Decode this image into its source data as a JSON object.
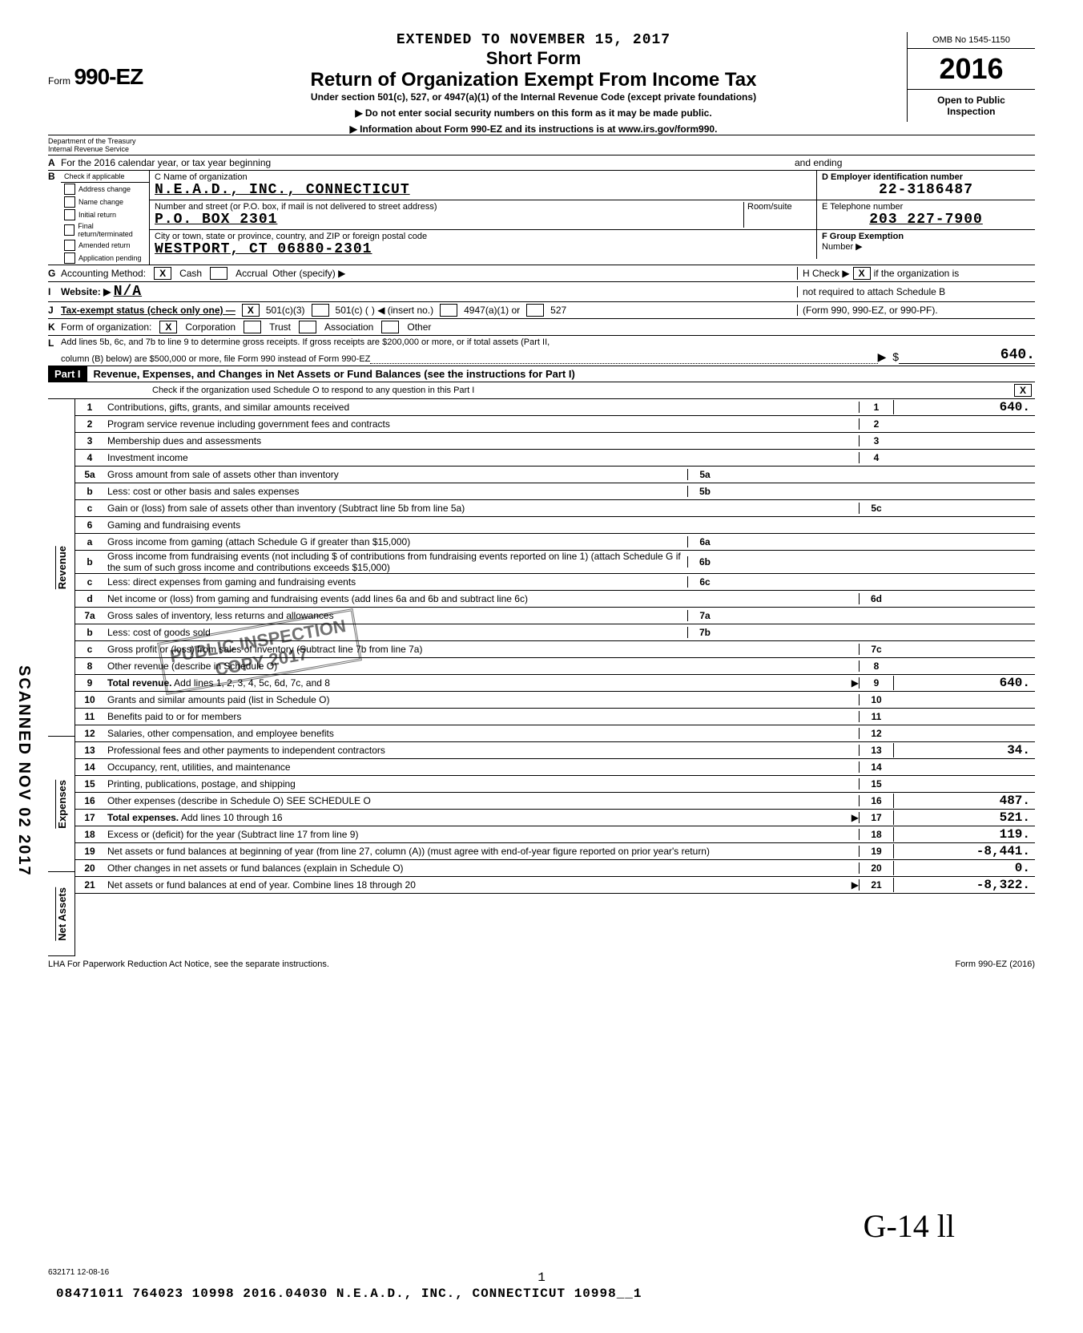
{
  "header": {
    "extended": "EXTENDED TO NOVEMBER 15, 2017",
    "short_form": "Short Form",
    "main_title": "Return of Organization Exempt From Income Tax",
    "subtitle": "Under section 501(c), 527, or 4947(a)(1) of the Internal Revenue Code (except private foundations)",
    "warn1": "▶ Do not enter social security numbers on this form as it may be made public.",
    "warn2": "▶ Information about Form 990-EZ and its instructions is at www.irs.gov/form990.",
    "form_small": "Form",
    "form_big": "990-EZ",
    "omb": "OMB No  1545-1150",
    "year": "2016",
    "open": "Open to Public",
    "insp": "Inspection",
    "dept1": "Department of the Treasury",
    "dept2": "Internal Revenue Service"
  },
  "rowA": {
    "label": "For the 2016 calendar year, or tax year beginning",
    "ending": "and ending"
  },
  "colB": {
    "header": "Check if applicable",
    "items": [
      "Address change",
      "Name change",
      "Initial return",
      "Final return/terminated",
      "Amended return",
      "Application pending"
    ]
  },
  "C": {
    "label": "C Name of organization",
    "value": "N.E.A.D., INC., CONNECTICUT",
    "addr_label": "Number and street (or P.O. box, if mail is not delivered to street address)",
    "room": "Room/suite",
    "addr_value": "P.O. BOX 2301",
    "city_label": "City or town, state or province, country, and ZIP or foreign postal code",
    "city_value": "WESTPORT, CT  06880-2301"
  },
  "D": {
    "label": "D Employer identification number",
    "value": "22-3186487"
  },
  "E": {
    "label": "E  Telephone number",
    "value": "203 227-7900"
  },
  "F": {
    "label": "F Group Exemption",
    "label2": "Number ▶"
  },
  "G": {
    "label": "Accounting Method:",
    "cash": "Cash",
    "accrual": "Accrual",
    "other": "Other (specify) ▶"
  },
  "H": {
    "label1": "H Check ▶",
    "label2": "if the organization is",
    "label3": "not required to attach Schedule B",
    "label4": "(Form 990, 990-EZ, or 990-PF)."
  },
  "I": {
    "label": "Website: ▶",
    "value": "N/A"
  },
  "J": {
    "label": "Tax-exempt status (check only one) —",
    "c3": "501(c)(3)",
    "c": "501(c) (",
    "insert": ") ◀ (insert no.)",
    "a1": "4947(a)(1) or",
    "s527": "527"
  },
  "K": {
    "label": "Form of organization:",
    "corp": "Corporation",
    "trust": "Trust",
    "assoc": "Association",
    "other": "Other"
  },
  "L": {
    "text1": "Add lines 5b, 6c, and 7b to line 9 to determine gross receipts. If gross receipts are $200,000 or more, or if total assets (Part II,",
    "text2": "column (B) below) are $500,000 or more, file Form 990 instead of Form 990-EZ",
    "value": "640."
  },
  "part1": {
    "header": "Part I",
    "title": "Revenue, Expenses, and Changes in Net Assets or Fund Balances (see the instructions for Part I)",
    "check": "Check if the organization used Schedule O to respond to any question in this Part I"
  },
  "sides": {
    "revenue": "Revenue",
    "expenses": "Expenses",
    "netassets": "Net Assets"
  },
  "lines": [
    {
      "n": "1",
      "d": "Contributions, gifts, grants, and similar amounts received",
      "rn": "1",
      "rv": "640."
    },
    {
      "n": "2",
      "d": "Program service revenue including government fees and contracts",
      "rn": "2",
      "rv": ""
    },
    {
      "n": "3",
      "d": "Membership dues and assessments",
      "rn": "3",
      "rv": ""
    },
    {
      "n": "4",
      "d": "Investment income",
      "rn": "4",
      "rv": ""
    },
    {
      "n": "5a",
      "d": "Gross amount from sale of assets other than inventory",
      "mn": "5a",
      "shade": true
    },
    {
      "n": "b",
      "d": "Less: cost or other basis and sales expenses",
      "mn": "5b",
      "shade": true
    },
    {
      "n": "c",
      "d": "Gain or (loss) from sale of assets other than inventory (Subtract line 5b from line 5a)",
      "rn": "5c",
      "rv": ""
    },
    {
      "n": "6",
      "d": "Gaming and fundraising events"
    },
    {
      "n": "a",
      "d": "Gross income from gaming (attach Schedule G if greater than $15,000)",
      "mn": "6a",
      "shade": true
    },
    {
      "n": "b",
      "d": "Gross income from fundraising events (not including $                    of contributions from fundraising events reported on line 1) (attach Schedule G if the sum of such gross income and contributions exceeds $15,000)",
      "mn": "6b",
      "shade": true
    },
    {
      "n": "c",
      "d": "Less: direct expenses from gaming and fundraising events",
      "mn": "6c",
      "shade": true
    },
    {
      "n": "d",
      "d": "Net income or (loss) from gaming and fundraising events (add lines 6a and 6b and subtract line 6c)",
      "rn": "6d",
      "rv": ""
    },
    {
      "n": "7a",
      "d": "Gross sales of inventory, less returns and allowances",
      "mn": "7a",
      "shade": true
    },
    {
      "n": "b",
      "d": "Less: cost of goods sold",
      "mn": "7b",
      "shade": true
    },
    {
      "n": "c",
      "d": "Gross profit or (loss) from sales of inventory (Subtract line 7b from line 7a)",
      "rn": "7c",
      "rv": ""
    },
    {
      "n": "8",
      "d": "Other revenue (describe in Schedule O)",
      "rn": "8",
      "rv": ""
    },
    {
      "n": "9",
      "d": "Total revenue. Add lines 1, 2, 3, 4, 5c, 6d, 7c, and 8",
      "rn": "9",
      "rv": "640.",
      "arrow": true,
      "bold": true
    },
    {
      "n": "10",
      "d": "Grants and similar amounts paid (list in Schedule O)",
      "rn": "10",
      "rv": ""
    },
    {
      "n": "11",
      "d": "Benefits paid to or for members",
      "rn": "11",
      "rv": ""
    },
    {
      "n": "12",
      "d": "Salaries, other compensation, and employee benefits",
      "rn": "12",
      "rv": ""
    },
    {
      "n": "13",
      "d": "Professional fees and other payments to independent contractors",
      "rn": "13",
      "rv": "34."
    },
    {
      "n": "14",
      "d": "Occupancy, rent, utilities, and maintenance",
      "rn": "14",
      "rv": ""
    },
    {
      "n": "15",
      "d": "Printing, publications, postage, and shipping",
      "rn": "15",
      "rv": ""
    },
    {
      "n": "16",
      "d": "Other expenses (describe in Schedule O)                              SEE SCHEDULE O",
      "rn": "16",
      "rv": "487."
    },
    {
      "n": "17",
      "d": "Total expenses. Add lines 10 through 16",
      "rn": "17",
      "rv": "521.",
      "arrow": true,
      "bold": true
    },
    {
      "n": "18",
      "d": "Excess or (deficit) for the year (Subtract line 17 from line 9)",
      "rn": "18",
      "rv": "119."
    },
    {
      "n": "19",
      "d": "Net assets or fund balances at beginning of year (from line 27, column (A)) (must agree with end-of-year figure reported on prior year's return)",
      "rn": "19",
      "rv": "-8,441."
    },
    {
      "n": "20",
      "d": "Other changes in net assets or fund balances (explain in Schedule O)",
      "rn": "20",
      "rv": "0."
    },
    {
      "n": "21",
      "d": "Net assets or fund balances at end of year. Combine lines 18 through 20",
      "rn": "21",
      "rv": "-8,322.",
      "arrow": true
    }
  ],
  "footer": {
    "lha": "LHA  For Paperwork Reduction Act Notice, see the separate instructions.",
    "form": "Form 990-EZ (2016)",
    "code": "632171  12-08-16",
    "bottom": "08471011 764023 10998          2016.04030 N.E.A.D., INC., CONNECTICUT 10998__1",
    "page": "1",
    "sig": "G-14 ll"
  },
  "stamp": {
    "l1": "PUBLIC INSPECTION",
    "l2": "COPY 2017",
    "l3": "OPEN"
  },
  "scanned": "SCANNED NOV 02 2017"
}
